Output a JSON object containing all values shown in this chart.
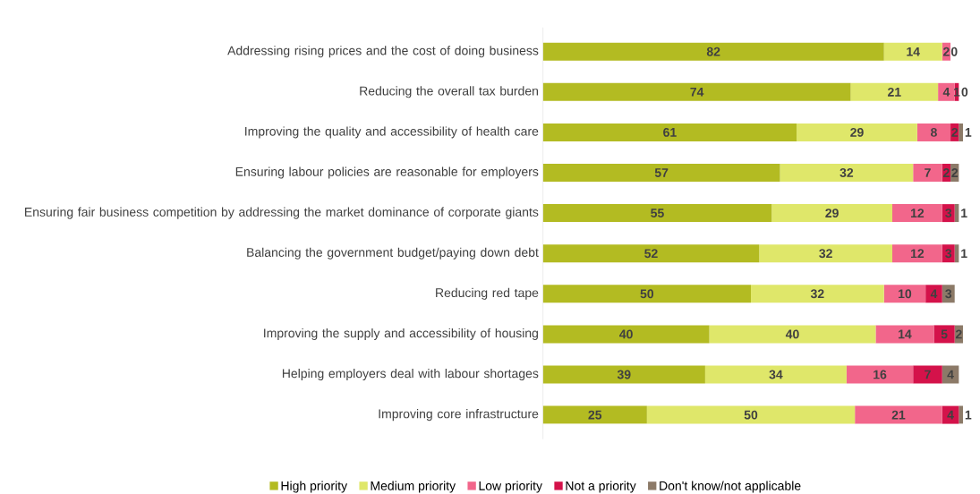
{
  "chart_data": {
    "type": "bar",
    "orientation": "horizontal",
    "stacked": true,
    "data_labels": true,
    "legend": "bottom",
    "categories": [
      "Addressing rising prices and the cost of doing business",
      "Reducing the overall tax burden",
      "Improving the quality and accessibility of health care",
      "Ensuring labour policies are reasonable for employers",
      "Ensuring fair business competition by addressing the market dominance of corporate giants",
      "Balancing the government budget/paying down debt",
      "Reducing red tape",
      "Improving the supply and accessibility of housing",
      "Helping employers deal with labour shortages",
      "Improving core infrastructure"
    ],
    "series": [
      {
        "name": "High priority",
        "color": "#b3bb22",
        "values": [
          82,
          74,
          61,
          57,
          55,
          52,
          50,
          40,
          39,
          25
        ]
      },
      {
        "name": "Medium priority",
        "color": "#dfe76a",
        "values": [
          14,
          21,
          29,
          32,
          29,
          32,
          32,
          40,
          34,
          50
        ]
      },
      {
        "name": "Low priority",
        "color": "#f2668b",
        "values": [
          2,
          4,
          8,
          7,
          12,
          12,
          10,
          14,
          16,
          21
        ]
      },
      {
        "name": "Not a priority",
        "color": "#d4124a",
        "values": [
          0,
          1,
          2,
          2,
          3,
          3,
          4,
          5,
          7,
          4
        ]
      },
      {
        "name": "Don't know/not applicable",
        "color": "#8c7a68",
        "values": [
          null,
          0,
          1,
          2,
          1,
          1,
          3,
          2,
          4,
          1
        ]
      }
    ]
  }
}
